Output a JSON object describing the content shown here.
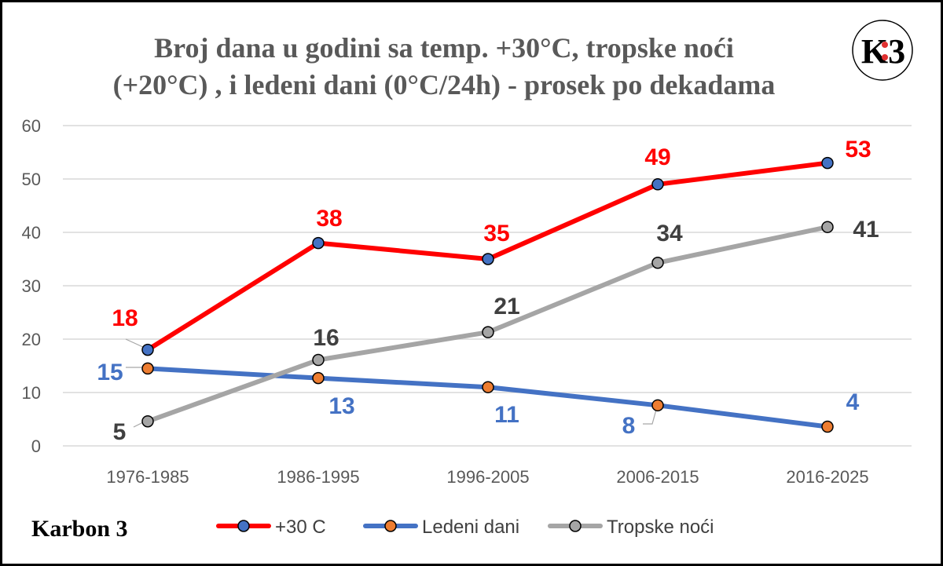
{
  "chart_data": {
    "type": "line",
    "title_lines": [
      "Broj dana u godini sa temp. +30°C, tropske noći",
      "(+20°C) , i ledeni dani (0°C/24h) - prosek po dekadama"
    ],
    "categories": [
      "1976-1985",
      "1986-1995",
      "1996-2005",
      "2006-2015",
      "2016-2025"
    ],
    "ylim": [
      0,
      60
    ],
    "yticks": [
      0,
      10,
      20,
      30,
      40,
      50,
      60
    ],
    "grid": true,
    "legend_position": "bottom",
    "series": [
      {
        "name": "+30 C",
        "values": [
          18,
          38,
          35,
          49,
          53
        ],
        "labels": [
          "18",
          "38",
          "35",
          "49",
          "53"
        ],
        "line_color": "#ff0000",
        "marker_color": "#4472c4"
      },
      {
        "name": "Ledeni dani",
        "values": [
          14.5,
          12.7,
          11,
          7.6,
          3.6
        ],
        "labels": [
          "15",
          "13",
          "11",
          "8",
          "4"
        ],
        "line_color": "#4472c4",
        "marker_color": "#ed7d31"
      },
      {
        "name": "Tropske noći",
        "values": [
          4.6,
          16.1,
          21.3,
          34.3,
          41
        ],
        "labels": [
          "5",
          "16",
          "21",
          "34",
          "41"
        ],
        "line_color": "#a5a5a5",
        "marker_color": "#a5a5a5"
      }
    ]
  },
  "branding": {
    "left_text": "Karbon 3",
    "logo_text": "K3"
  },
  "colors": {
    "label_red": "#ff0000",
    "label_blue": "#4472c4",
    "label_dark": "#404040"
  }
}
